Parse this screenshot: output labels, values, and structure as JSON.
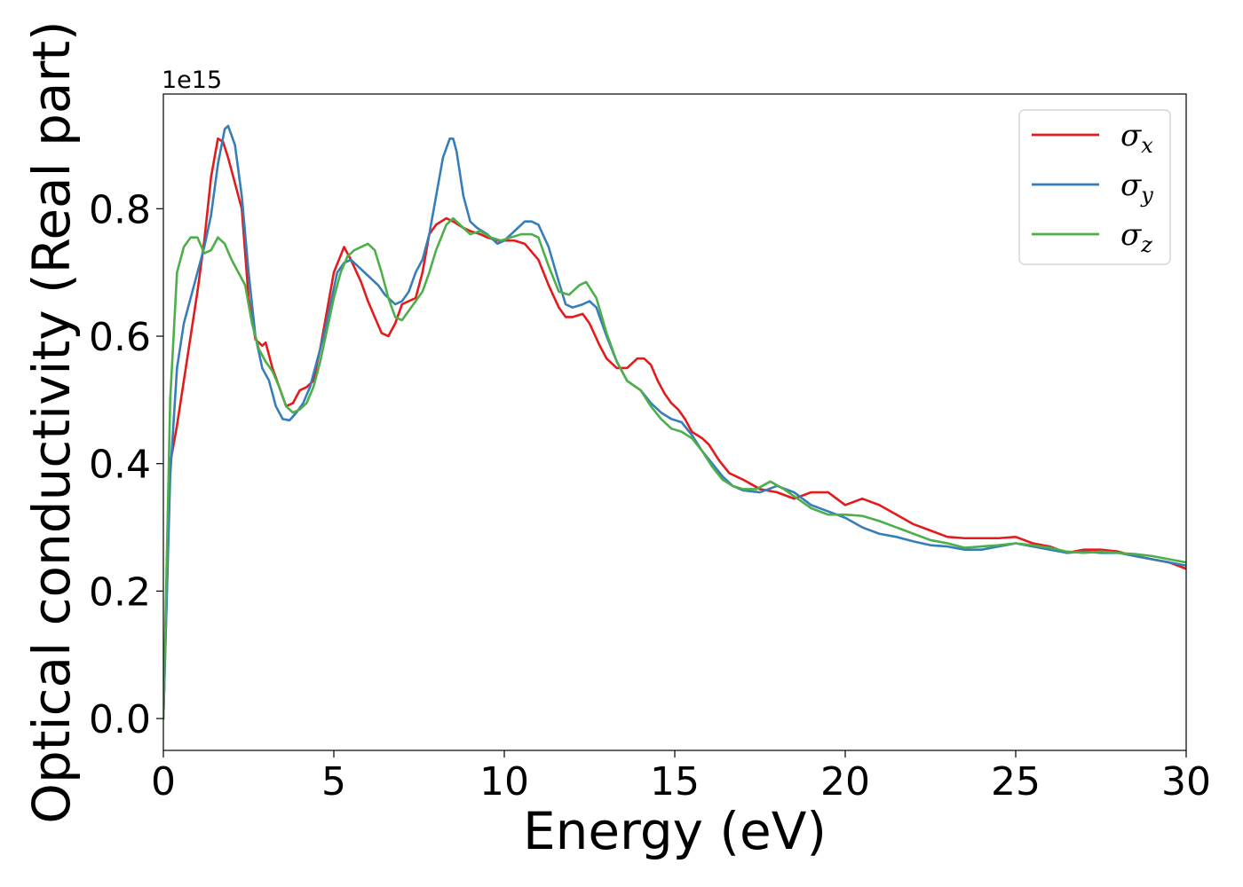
{
  "chart_data": {
    "type": "line",
    "title": "",
    "xlabel": "Energy (eV)",
    "ylabel": "Optical conductivity (Real part)",
    "y_offset_label": "1e15",
    "xlim": [
      0,
      30
    ],
    "ylim": [
      -0.05,
      0.98
    ],
    "xticks": [
      0,
      5,
      10,
      15,
      20,
      25,
      30
    ],
    "xtick_labels": [
      "0",
      "5",
      "10",
      "15",
      "20",
      "25",
      "30"
    ],
    "yticks": [
      0.0,
      0.2,
      0.4,
      0.6,
      0.8
    ],
    "ytick_labels": [
      "0.0",
      "0.2",
      "0.4",
      "0.6",
      "0.8"
    ],
    "grid": false,
    "legend_position": "top-right",
    "series": [
      {
        "name": "σx",
        "symbol": "σ",
        "subscript": "x",
        "color": "#e41a1c",
        "x": [
          0,
          0.2,
          0.4,
          0.6,
          0.8,
          1.0,
          1.2,
          1.4,
          1.6,
          1.75,
          1.9,
          2.1,
          2.3,
          2.5,
          2.7,
          2.9,
          3.0,
          3.2,
          3.4,
          3.6,
          3.8,
          4.0,
          4.2,
          4.4,
          4.6,
          4.8,
          5.0,
          5.3,
          5.5,
          5.8,
          6.0,
          6.2,
          6.4,
          6.6,
          6.8,
          7.0,
          7.2,
          7.4,
          7.6,
          7.8,
          8.0,
          8.3,
          8.5,
          8.8,
          9.0,
          9.3,
          9.5,
          9.8,
          10.0,
          10.3,
          10.6,
          11.0,
          11.3,
          11.6,
          11.8,
          12.0,
          12.3,
          12.5,
          12.8,
          13.0,
          13.3,
          13.6,
          13.9,
          14.1,
          14.3,
          14.5,
          14.7,
          14.9,
          15.1,
          15.3,
          15.5,
          15.8,
          16.0,
          16.3,
          16.6,
          17.0,
          17.5,
          18.0,
          18.5,
          19.0,
          19.5,
          20.0,
          20.5,
          21.0,
          21.5,
          22.0,
          22.5,
          23.0,
          23.5,
          24.0,
          24.5,
          25.0,
          25.5,
          26.0,
          26.5,
          27.0,
          27.5,
          28.0,
          28.5,
          29.0,
          29.5,
          30.0
        ],
        "values": [
          0.0,
          0.4,
          0.46,
          0.53,
          0.6,
          0.67,
          0.75,
          0.85,
          0.91,
          0.905,
          0.88,
          0.84,
          0.8,
          0.66,
          0.595,
          0.585,
          0.59,
          0.55,
          0.52,
          0.49,
          0.495,
          0.515,
          0.52,
          0.53,
          0.58,
          0.64,
          0.7,
          0.74,
          0.72,
          0.685,
          0.655,
          0.63,
          0.605,
          0.6,
          0.62,
          0.65,
          0.655,
          0.66,
          0.7,
          0.76,
          0.775,
          0.785,
          0.78,
          0.77,
          0.765,
          0.76,
          0.755,
          0.75,
          0.75,
          0.75,
          0.745,
          0.72,
          0.68,
          0.645,
          0.63,
          0.63,
          0.635,
          0.62,
          0.585,
          0.565,
          0.55,
          0.55,
          0.565,
          0.565,
          0.555,
          0.53,
          0.51,
          0.495,
          0.485,
          0.47,
          0.45,
          0.44,
          0.43,
          0.405,
          0.385,
          0.375,
          0.36,
          0.355,
          0.345,
          0.355,
          0.355,
          0.335,
          0.345,
          0.335,
          0.32,
          0.305,
          0.295,
          0.285,
          0.283,
          0.283,
          0.283,
          0.285,
          0.275,
          0.27,
          0.26,
          0.265,
          0.265,
          0.262,
          0.255,
          0.25,
          0.245,
          0.235
        ]
      },
      {
        "name": "σy",
        "symbol": "σ",
        "subscript": "y",
        "color": "#377eb8",
        "x": [
          0,
          0.2,
          0.4,
          0.6,
          0.8,
          1.0,
          1.2,
          1.4,
          1.6,
          1.8,
          1.9,
          2.1,
          2.3,
          2.5,
          2.7,
          2.9,
          3.1,
          3.3,
          3.5,
          3.7,
          3.9,
          4.1,
          4.3,
          4.5,
          4.7,
          4.9,
          5.1,
          5.3,
          5.5,
          5.7,
          6.0,
          6.3,
          6.5,
          6.8,
          7.0,
          7.2,
          7.4,
          7.6,
          7.8,
          8.0,
          8.2,
          8.4,
          8.5,
          8.6,
          8.8,
          9.0,
          9.2,
          9.5,
          9.8,
          10.0,
          10.2,
          10.4,
          10.6,
          10.8,
          11.0,
          11.3,
          11.6,
          11.8,
          12.0,
          12.3,
          12.5,
          12.7,
          13.0,
          13.3,
          13.6,
          14.0,
          14.3,
          14.6,
          14.9,
          15.2,
          15.5,
          15.8,
          16.1,
          16.4,
          16.7,
          17.0,
          17.5,
          18.0,
          18.5,
          19.0,
          19.5,
          20.0,
          20.5,
          21.0,
          21.5,
          22.0,
          22.5,
          23.0,
          23.5,
          24.0,
          24.5,
          25.0,
          25.5,
          26.0,
          26.5,
          27.0,
          27.5,
          28.0,
          28.5,
          29.0,
          29.5,
          30.0
        ],
        "values": [
          0.0,
          0.38,
          0.55,
          0.62,
          0.66,
          0.7,
          0.74,
          0.79,
          0.87,
          0.925,
          0.93,
          0.9,
          0.82,
          0.7,
          0.6,
          0.55,
          0.53,
          0.49,
          0.47,
          0.468,
          0.48,
          0.495,
          0.52,
          0.56,
          0.6,
          0.65,
          0.7,
          0.715,
          0.72,
          0.71,
          0.695,
          0.68,
          0.665,
          0.65,
          0.655,
          0.67,
          0.7,
          0.72,
          0.76,
          0.82,
          0.88,
          0.91,
          0.91,
          0.89,
          0.82,
          0.78,
          0.77,
          0.76,
          0.745,
          0.75,
          0.76,
          0.77,
          0.78,
          0.78,
          0.775,
          0.74,
          0.685,
          0.65,
          0.645,
          0.65,
          0.655,
          0.645,
          0.6,
          0.56,
          0.53,
          0.515,
          0.495,
          0.48,
          0.47,
          0.465,
          0.445,
          0.42,
          0.4,
          0.38,
          0.365,
          0.358,
          0.355,
          0.365,
          0.355,
          0.335,
          0.325,
          0.315,
          0.3,
          0.29,
          0.285,
          0.278,
          0.272,
          0.27,
          0.265,
          0.265,
          0.27,
          0.275,
          0.27,
          0.265,
          0.26,
          0.262,
          0.26,
          0.26,
          0.255,
          0.25,
          0.245,
          0.24
        ]
      },
      {
        "name": "σz",
        "symbol": "σ",
        "subscript": "z",
        "color": "#4daf4a",
        "x": [
          0,
          0.2,
          0.4,
          0.6,
          0.8,
          1.0,
          1.2,
          1.4,
          1.6,
          1.8,
          2.0,
          2.2,
          2.4,
          2.6,
          2.8,
          3.0,
          3.2,
          3.4,
          3.6,
          3.8,
          4.0,
          4.2,
          4.4,
          4.6,
          4.8,
          5.0,
          5.2,
          5.4,
          5.6,
          5.8,
          6.0,
          6.2,
          6.4,
          6.6,
          6.8,
          7.0,
          7.2,
          7.4,
          7.6,
          7.8,
          8.0,
          8.3,
          8.5,
          8.8,
          9.0,
          9.3,
          9.6,
          9.9,
          10.2,
          10.5,
          10.8,
          11.0,
          11.3,
          11.6,
          11.9,
          12.2,
          12.4,
          12.7,
          13.0,
          13.3,
          13.6,
          14.0,
          14.3,
          14.6,
          14.9,
          15.2,
          15.5,
          15.8,
          16.1,
          16.4,
          16.7,
          17.0,
          17.4,
          17.8,
          18.2,
          18.6,
          19.0,
          19.5,
          20.0,
          20.5,
          21.0,
          21.5,
          22.0,
          22.5,
          23.0,
          23.5,
          24.0,
          24.5,
          25.0,
          25.5,
          26.0,
          26.5,
          27.0,
          27.5,
          28.0,
          28.5,
          29.0,
          29.5,
          30.0
        ],
        "values": [
          0.0,
          0.5,
          0.7,
          0.74,
          0.755,
          0.755,
          0.73,
          0.735,
          0.755,
          0.745,
          0.72,
          0.7,
          0.68,
          0.62,
          0.58,
          0.56,
          0.545,
          0.52,
          0.49,
          0.48,
          0.485,
          0.495,
          0.52,
          0.56,
          0.61,
          0.66,
          0.7,
          0.725,
          0.735,
          0.74,
          0.745,
          0.735,
          0.7,
          0.66,
          0.63,
          0.625,
          0.64,
          0.655,
          0.67,
          0.7,
          0.735,
          0.775,
          0.785,
          0.77,
          0.76,
          0.765,
          0.755,
          0.75,
          0.755,
          0.76,
          0.76,
          0.755,
          0.71,
          0.67,
          0.665,
          0.68,
          0.685,
          0.66,
          0.605,
          0.56,
          0.53,
          0.515,
          0.49,
          0.47,
          0.455,
          0.45,
          0.44,
          0.42,
          0.395,
          0.375,
          0.365,
          0.36,
          0.36,
          0.372,
          0.36,
          0.345,
          0.33,
          0.32,
          0.32,
          0.318,
          0.31,
          0.3,
          0.29,
          0.28,
          0.275,
          0.268,
          0.27,
          0.272,
          0.275,
          0.272,
          0.268,
          0.262,
          0.26,
          0.262,
          0.26,
          0.258,
          0.255,
          0.25,
          0.245
        ]
      }
    ]
  }
}
